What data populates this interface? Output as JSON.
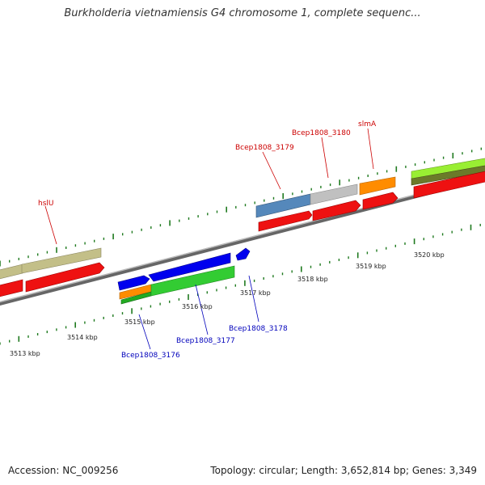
{
  "title": "Burkholderia vietnamiensis G4 chromosome 1, complete sequenc...",
  "footer": {
    "accession": "Accession: NC_009256",
    "summary": "Topology: circular; Length: 3,652,814 bp; Genes: 3,349"
  },
  "colors": {
    "backbone": "#808080",
    "tick": "#1f7a1f",
    "top_gene_label": "#cc0000",
    "bottom_gene_label": "#0000bb",
    "scale_label": "#222222"
  },
  "upper_scale_labels": [
    "3518 kbp",
    "3519 kbp",
    "3520 kbp"
  ],
  "lower_scale_labels": [
    "3513 kbp",
    "3514 kbp",
    "3515 kbp",
    "3516 kbp",
    "3517 kbp"
  ],
  "top_gene_labels": [
    "hslU",
    "Bcep1808_3179",
    "Bcep1808_3180",
    "slmA"
  ],
  "bottom_gene_labels": [
    "Bcep1808_3176",
    "Bcep1808_3177",
    "Bcep1808_3178"
  ]
}
